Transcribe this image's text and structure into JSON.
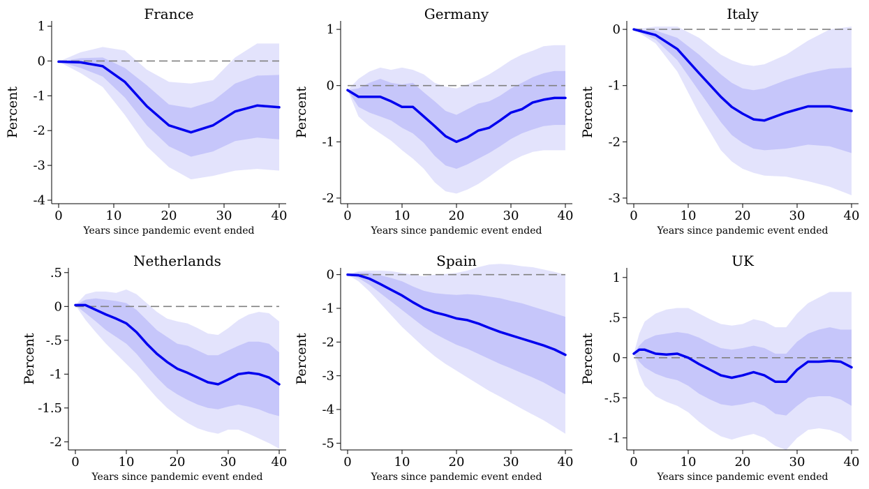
{
  "figure": {
    "layout": "2 rows x 3 columns"
  },
  "style": {
    "outer_band_color": "#e3e3fc",
    "inner_band_color": "#c6c6fa",
    "line_color": "#0000ee",
    "zero_line_color": "#808080",
    "axis_color": "#000000"
  },
  "chart_data": [
    {
      "type": "line",
      "title": "France",
      "xlabel": "Years since pandemic event ended",
      "ylabel": "Percent",
      "xlim": [
        0,
        40
      ],
      "ylim": [
        -4.1,
        1.15
      ],
      "xticks": [
        0,
        10,
        20,
        30,
        40
      ],
      "xtick_labels": [
        "0",
        "10",
        "20",
        "30",
        "40"
      ],
      "yticks": [
        -4,
        -3,
        -2,
        -1,
        0,
        1
      ],
      "ytick_labels": [
        "-4",
        "-3",
        "-2",
        "-1",
        "0",
        "1"
      ],
      "zero_line": 0,
      "x": [
        0,
        4,
        8,
        12,
        16,
        20,
        24,
        28,
        32,
        36,
        40
      ],
      "estimate": [
        -0.02,
        -0.04,
        -0.15,
        -0.6,
        -1.3,
        -1.85,
        -2.05,
        -1.85,
        -1.45,
        -1.28,
        -1.33
      ],
      "band_inner": {
        "lower": [
          -0.02,
          -0.2,
          -0.45,
          -1.05,
          -1.85,
          -2.45,
          -2.75,
          -2.6,
          -2.3,
          -2.2,
          -2.25
        ],
        "upper": [
          -0.02,
          0.08,
          0.1,
          -0.2,
          -0.7,
          -1.25,
          -1.35,
          -1.15,
          -0.65,
          -0.42,
          -0.4
        ]
      },
      "band_outer": {
        "lower": [
          -0.02,
          -0.35,
          -0.75,
          -1.55,
          -2.45,
          -3.05,
          -3.4,
          -3.3,
          -3.15,
          -3.1,
          -3.15
        ],
        "upper": [
          -0.02,
          0.25,
          0.4,
          0.3,
          -0.25,
          -0.6,
          -0.65,
          -0.55,
          0.1,
          0.5,
          0.5
        ]
      }
    },
    {
      "type": "line",
      "title": "Germany",
      "xlabel": "Years since pandemic event ended",
      "ylabel": "Percent",
      "xlim": [
        0,
        40
      ],
      "ylim": [
        -2.1,
        1.15
      ],
      "xticks": [
        0,
        10,
        20,
        30,
        40
      ],
      "xtick_labels": [
        "0",
        "10",
        "20",
        "30",
        "40"
      ],
      "yticks": [
        -2,
        -1,
        0,
        1
      ],
      "ytick_labels": [
        "-2",
        "-1",
        "0",
        "1"
      ],
      "zero_line": 0,
      "x": [
        0,
        2,
        4,
        6,
        8,
        10,
        12,
        14,
        16,
        18,
        20,
        22,
        24,
        26,
        28,
        30,
        32,
        34,
        36,
        38,
        40
      ],
      "estimate": [
        -0.08,
        -0.2,
        -0.2,
        -0.2,
        -0.28,
        -0.38,
        -0.38,
        -0.55,
        -0.72,
        -0.9,
        -1.0,
        -0.92,
        -0.8,
        -0.75,
        -0.62,
        -0.48,
        -0.42,
        -0.3,
        -0.25,
        -0.22,
        -0.22
      ],
      "band_inner": {
        "lower": [
          -0.08,
          -0.38,
          -0.48,
          -0.55,
          -0.62,
          -0.75,
          -0.85,
          -1.02,
          -1.25,
          -1.42,
          -1.48,
          -1.4,
          -1.3,
          -1.2,
          -1.08,
          -0.95,
          -0.85,
          -0.78,
          -0.72,
          -0.7,
          -0.7
        ],
        "upper": [
          -0.08,
          -0.05,
          0.05,
          0.12,
          0.05,
          0.02,
          0.05,
          -0.12,
          -0.28,
          -0.45,
          -0.52,
          -0.42,
          -0.32,
          -0.28,
          -0.18,
          -0.05,
          0.05,
          0.15,
          0.22,
          0.26,
          0.26
        ]
      },
      "band_outer": {
        "lower": [
          -0.08,
          -0.55,
          -0.72,
          -0.85,
          -0.98,
          -1.15,
          -1.3,
          -1.48,
          -1.72,
          -1.88,
          -1.92,
          -1.85,
          -1.75,
          -1.62,
          -1.48,
          -1.35,
          -1.25,
          -1.18,
          -1.15,
          -1.15,
          -1.15
        ],
        "upper": [
          -0.08,
          0.12,
          0.25,
          0.32,
          0.28,
          0.32,
          0.28,
          0.2,
          0.05,
          -0.02,
          -0.05,
          0.02,
          0.1,
          0.2,
          0.32,
          0.45,
          0.55,
          0.62,
          0.7,
          0.72,
          0.72
        ]
      }
    },
    {
      "type": "line",
      "title": "Italy",
      "xlabel": "Years since pandemic event ended",
      "ylabel": "Percent",
      "xlim": [
        0,
        40
      ],
      "ylim": [
        -3.1,
        0.15
      ],
      "xticks": [
        0,
        10,
        20,
        30,
        40
      ],
      "xtick_labels": [
        "0",
        "10",
        "20",
        "30",
        "40"
      ],
      "yticks": [
        -3,
        -2,
        -1,
        0
      ],
      "ytick_labels": [
        "-3",
        "-2",
        "-1",
        "0"
      ],
      "zero_line": 0,
      "x": [
        0,
        4,
        8,
        12,
        16,
        18,
        20,
        22,
        24,
        28,
        32,
        36,
        40
      ],
      "estimate": [
        0,
        -0.1,
        -0.35,
        -0.78,
        -1.2,
        -1.38,
        -1.5,
        -1.6,
        -1.62,
        -1.48,
        -1.37,
        -1.37,
        -1.45
      ],
      "band_inner": {
        "lower": [
          0,
          -0.18,
          -0.55,
          -1.1,
          -1.65,
          -1.88,
          -2.02,
          -2.12,
          -2.15,
          -2.12,
          -2.05,
          -2.08,
          -2.2
        ],
        "upper": [
          0,
          -0.02,
          -0.15,
          -0.45,
          -0.8,
          -0.95,
          -1.05,
          -1.08,
          -1.05,
          -0.9,
          -0.78,
          -0.7,
          -0.68
        ]
      },
      "band_outer": {
        "lower": [
          0,
          -0.25,
          -0.75,
          -1.5,
          -2.15,
          -2.35,
          -2.48,
          -2.55,
          -2.6,
          -2.62,
          -2.7,
          -2.8,
          -2.95
        ],
        "upper": [
          0,
          0.05,
          0.05,
          -0.15,
          -0.45,
          -0.55,
          -0.62,
          -0.65,
          -0.62,
          -0.45,
          -0.2,
          0.0,
          0.05
        ]
      }
    },
    {
      "type": "line",
      "title": "Netherlands",
      "xlabel": "Years since pandemic event ended",
      "ylabel": "Percent",
      "xlim": [
        0,
        40
      ],
      "ylim": [
        -2.12,
        0.57
      ],
      "xticks": [
        0,
        10,
        20,
        30,
        40
      ],
      "xtick_labels": [
        "0",
        "10",
        "20",
        "30",
        "40"
      ],
      "yticks": [
        -2,
        -1.5,
        -1,
        -0.5,
        0,
        0.5
      ],
      "ytick_labels": [
        "-2",
        "-1.5",
        "-1",
        "-.5",
        "0",
        ".5"
      ],
      "zero_line": 0,
      "x": [
        0,
        2,
        4,
        6,
        8,
        10,
        12,
        14,
        16,
        18,
        20,
        22,
        24,
        26,
        28,
        30,
        32,
        34,
        36,
        38,
        40
      ],
      "estimate": [
        0.02,
        0.02,
        -0.05,
        -0.12,
        -0.18,
        -0.25,
        -0.38,
        -0.55,
        -0.7,
        -0.82,
        -0.92,
        -0.98,
        -1.05,
        -1.12,
        -1.15,
        -1.08,
        -1.0,
        -0.98,
        -1.0,
        -1.05,
        -1.15
      ],
      "band_inner": {
        "lower": [
          0.02,
          -0.1,
          -0.22,
          -0.35,
          -0.45,
          -0.55,
          -0.7,
          -0.88,
          -1.05,
          -1.2,
          -1.3,
          -1.38,
          -1.45,
          -1.5,
          -1.52,
          -1.48,
          -1.45,
          -1.48,
          -1.52,
          -1.58,
          -1.62
        ],
        "upper": [
          0.02,
          0.1,
          0.12,
          0.1,
          0.08,
          0.05,
          -0.05,
          -0.2,
          -0.35,
          -0.45,
          -0.55,
          -0.58,
          -0.65,
          -0.72,
          -0.72,
          -0.65,
          -0.58,
          -0.52,
          -0.52,
          -0.55,
          -0.68
        ]
      },
      "band_outer": {
        "lower": [
          0.02,
          -0.2,
          -0.38,
          -0.55,
          -0.7,
          -0.85,
          -1.0,
          -1.18,
          -1.35,
          -1.5,
          -1.62,
          -1.72,
          -1.8,
          -1.85,
          -1.88,
          -1.82,
          -1.82,
          -1.88,
          -1.95,
          -2.02,
          -2.1
        ],
        "upper": [
          0.02,
          0.18,
          0.22,
          0.22,
          0.2,
          0.25,
          0.18,
          0.05,
          -0.08,
          -0.18,
          -0.22,
          -0.25,
          -0.32,
          -0.4,
          -0.42,
          -0.32,
          -0.2,
          -0.12,
          -0.08,
          -0.1,
          -0.22
        ]
      }
    },
    {
      "type": "line",
      "title": "Spain",
      "xlabel": "Years since pandemic event ended",
      "ylabel": "Percent",
      "xlim": [
        0,
        40
      ],
      "ylim": [
        -5.2,
        0.2
      ],
      "xticks": [
        0,
        10,
        20,
        30,
        40
      ],
      "xtick_labels": [
        "0",
        "10",
        "20",
        "30",
        "40"
      ],
      "yticks": [
        -5,
        -4,
        -3,
        -2,
        -1,
        0
      ],
      "ytick_labels": [
        "-5",
        "-4",
        "-3",
        "-2",
        "-1",
        "0"
      ],
      "zero_line": 0,
      "x": [
        0,
        2,
        4,
        6,
        8,
        10,
        12,
        14,
        16,
        18,
        20,
        22,
        24,
        26,
        28,
        30,
        32,
        34,
        36,
        38,
        40
      ],
      "estimate": [
        0,
        -0.02,
        -0.12,
        -0.28,
        -0.45,
        -0.62,
        -0.82,
        -1.0,
        -1.12,
        -1.2,
        -1.3,
        -1.35,
        -1.45,
        -1.58,
        -1.7,
        -1.8,
        -1.9,
        -2.0,
        -2.1,
        -2.22,
        -2.38
      ],
      "band_inner": {
        "lower": [
          0,
          -0.1,
          -0.3,
          -0.55,
          -0.8,
          -1.05,
          -1.3,
          -1.55,
          -1.75,
          -1.92,
          -2.08,
          -2.2,
          -2.35,
          -2.5,
          -2.65,
          -2.78,
          -2.92,
          -3.05,
          -3.2,
          -3.38,
          -3.55
        ],
        "upper": [
          0,
          0.06,
          0.05,
          -0.02,
          -0.1,
          -0.2,
          -0.35,
          -0.48,
          -0.55,
          -0.58,
          -0.6,
          -0.58,
          -0.6,
          -0.65,
          -0.7,
          -0.78,
          -0.85,
          -0.95,
          -1.05,
          -1.15,
          -1.25
        ]
      },
      "band_outer": {
        "lower": [
          0,
          -0.2,
          -0.5,
          -0.85,
          -1.2,
          -1.55,
          -1.85,
          -2.15,
          -2.42,
          -2.65,
          -2.85,
          -3.05,
          -3.25,
          -3.45,
          -3.62,
          -3.8,
          -3.98,
          -4.15,
          -4.32,
          -4.52,
          -4.72
        ],
        "upper": [
          0,
          0.1,
          0.12,
          0.12,
          0.1,
          0.05,
          0.0,
          -0.05,
          0.0,
          0.02,
          0.05,
          0.12,
          0.22,
          0.3,
          0.32,
          0.3,
          0.25,
          0.22,
          0.15,
          0.08,
          0.0
        ]
      }
    },
    {
      "type": "line",
      "title": "UK",
      "xlabel": "Years since pandemic event ended",
      "ylabel": "Percent",
      "xlim": [
        0,
        40
      ],
      "ylim": [
        -1.15,
        1.12
      ],
      "xticks": [
        0,
        10,
        20,
        30,
        40
      ],
      "xtick_labels": [
        "0",
        "10",
        "20",
        "30",
        "40"
      ],
      "yticks": [
        -1,
        -0.5,
        0,
        0.5,
        1
      ],
      "ytick_labels": [
        "-1",
        "-.5",
        "0",
        ".5",
        "1"
      ],
      "zero_line": 0,
      "x": [
        0,
        1,
        2,
        4,
        6,
        8,
        10,
        12,
        14,
        16,
        18,
        20,
        22,
        24,
        26,
        28,
        30,
        32,
        34,
        36,
        38,
        40
      ],
      "estimate": [
        0.05,
        0.1,
        0.1,
        0.05,
        0.04,
        0.05,
        0.0,
        -0.08,
        -0.15,
        -0.22,
        -0.25,
        -0.22,
        -0.18,
        -0.22,
        -0.3,
        -0.3,
        -0.15,
        -0.05,
        -0.05,
        -0.04,
        -0.05,
        -0.12
      ],
      "band_inner": {
        "lower": [
          0.05,
          -0.05,
          -0.12,
          -0.2,
          -0.25,
          -0.28,
          -0.35,
          -0.45,
          -0.52,
          -0.58,
          -0.6,
          -0.58,
          -0.55,
          -0.6,
          -0.7,
          -0.72,
          -0.6,
          -0.5,
          -0.48,
          -0.48,
          -0.52,
          -0.6
        ],
        "upper": [
          0.05,
          0.15,
          0.22,
          0.28,
          0.3,
          0.32,
          0.3,
          0.25,
          0.18,
          0.12,
          0.1,
          0.12,
          0.15,
          0.12,
          0.05,
          0.05,
          0.2,
          0.3,
          0.35,
          0.38,
          0.35,
          0.35
        ]
      },
      "band_outer": {
        "lower": [
          0.05,
          -0.2,
          -0.35,
          -0.48,
          -0.55,
          -0.6,
          -0.68,
          -0.8,
          -0.9,
          -0.98,
          -1.02,
          -0.98,
          -0.95,
          -1.0,
          -1.1,
          -1.15,
          -1.0,
          -0.9,
          -0.88,
          -0.9,
          -0.95,
          -1.05
        ],
        "upper": [
          0.05,
          0.3,
          0.45,
          0.55,
          0.6,
          0.62,
          0.62,
          0.55,
          0.48,
          0.42,
          0.4,
          0.42,
          0.48,
          0.45,
          0.38,
          0.38,
          0.55,
          0.68,
          0.75,
          0.82,
          0.82,
          0.82
        ]
      }
    }
  ]
}
